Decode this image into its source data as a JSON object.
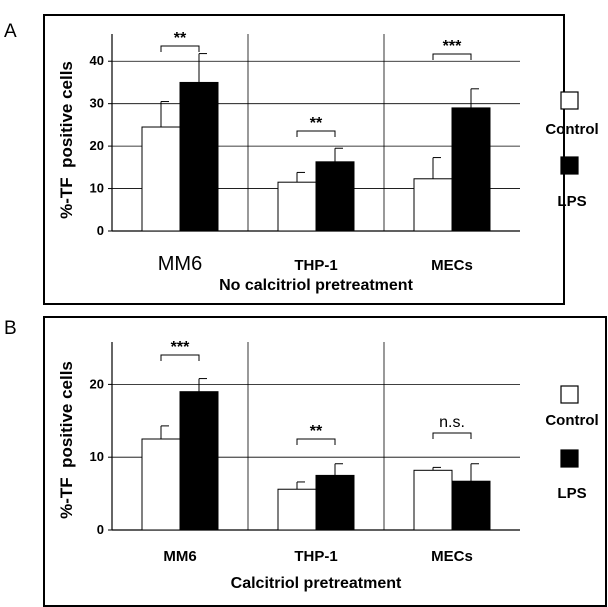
{
  "chart_data": [
    {
      "type": "bar",
      "panel_label": "A",
      "categories": [
        "MM6",
        "THP-1",
        "MECs"
      ],
      "series": [
        {
          "name": "Control",
          "values": [
            24.5,
            11.5,
            12.3
          ],
          "errors": [
            6.0,
            2.3,
            5.0
          ],
          "color": "#ffffff"
        },
        {
          "name": "LPS",
          "values": [
            35.0,
            16.3,
            29.0
          ],
          "errors": [
            6.8,
            3.2,
            4.5
          ],
          "color": "#000000"
        }
      ],
      "significance": [
        "**",
        "**",
        "***"
      ],
      "ylabel": "%-TF  positive cells",
      "xlabel": "No calcitriol pretreatment",
      "ylim": [
        0,
        45
      ],
      "yticks": [
        0,
        10,
        20,
        30,
        40
      ],
      "grid": true,
      "legend": "right"
    },
    {
      "type": "bar",
      "panel_label": "B",
      "categories": [
        "MM6",
        "THP-1",
        "MECs"
      ],
      "series": [
        {
          "name": "Control",
          "values": [
            12.5,
            5.6,
            8.2
          ],
          "errors": [
            1.8,
            1.0,
            0.4
          ],
          "color": "#ffffff"
        },
        {
          "name": "LPS",
          "values": [
            19.0,
            7.5,
            6.7
          ],
          "errors": [
            1.8,
            1.6,
            2.4
          ],
          "color": "#000000"
        }
      ],
      "significance": [
        "***",
        "**",
        "n.s."
      ],
      "ylabel": "%-TF  positive cells",
      "xlabel": "Calcitriol pretreatment",
      "ylim": [
        0,
        25
      ],
      "yticks": [
        0,
        10,
        20
      ],
      "grid": true,
      "legend": "right"
    }
  ]
}
